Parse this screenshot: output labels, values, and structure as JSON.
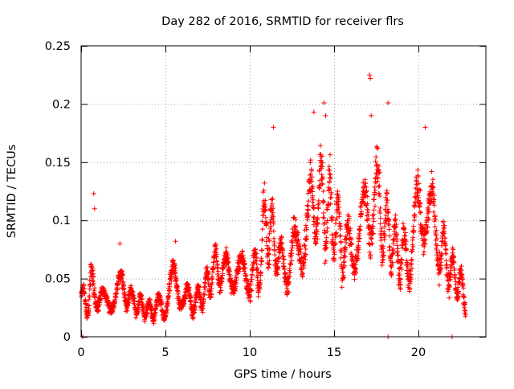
{
  "chart_data": {
    "type": "scatter",
    "title": "Day 282 of 2016, SRMTID for receiver flrs",
    "xlabel": "GPS time / hours",
    "ylabel": "SRMTID / TECUs",
    "xlim": [
      0,
      24
    ],
    "ylim": [
      0,
      0.25
    ],
    "xticks": [
      0,
      5,
      10,
      15,
      20
    ],
    "xtick_labels": [
      "0",
      "5",
      "10",
      "15",
      "20"
    ],
    "yticks": [
      0,
      0.05,
      0.1,
      0.15,
      0.2,
      0.25
    ],
    "ytick_labels": [
      "0",
      "0.05",
      "0.1",
      "0.15",
      "0.2",
      "0.25"
    ],
    "grid": true,
    "marker": "+",
    "marker_color": "#ff0000",
    "grid_color": "#a0a0a0",
    "axis_color": "#000000",
    "sampling": {
      "t_start": 0,
      "t_end": 22.8,
      "points_per_hour": 110
    },
    "series": [
      {
        "name": "SRMTID",
        "envelope": {
          "x": [
            0.0,
            0.3,
            0.6,
            1.0,
            1.5,
            2.0,
            2.5,
            3.0,
            3.5,
            4.0,
            4.5,
            5.0,
            5.5,
            6.0,
            6.5,
            7.0,
            7.5,
            8.0,
            8.5,
            9.0,
            9.5,
            10.0,
            10.5,
            11.0,
            11.5,
            12.0,
            12.5,
            13.0,
            13.5,
            14.0,
            14.5,
            15.0,
            15.5,
            16.0,
            16.5,
            17.0,
            17.5,
            18.0,
            18.5,
            19.0,
            19.5,
            20.0,
            20.5,
            21.0,
            21.5,
            22.0,
            22.5,
            22.8
          ],
          "y": [
            0.035,
            0.03,
            0.04,
            0.035,
            0.03,
            0.035,
            0.045,
            0.03,
            0.028,
            0.022,
            0.025,
            0.028,
            0.05,
            0.035,
            0.03,
            0.032,
            0.045,
            0.062,
            0.055,
            0.055,
            0.055,
            0.05,
            0.058,
            0.1,
            0.08,
            0.06,
            0.065,
            0.085,
            0.1,
            0.12,
            0.11,
            0.1,
            0.08,
            0.075,
            0.085,
            0.11,
            0.12,
            0.095,
            0.08,
            0.07,
            0.065,
            0.11,
            0.115,
            0.09,
            0.07,
            0.055,
            0.045,
            0.03
          ],
          "spread": [
            0.01,
            0.02,
            0.025,
            0.015,
            0.012,
            0.015,
            0.02,
            0.012,
            0.012,
            0.01,
            0.012,
            0.015,
            0.02,
            0.015,
            0.015,
            0.015,
            0.02,
            0.02,
            0.02,
            0.02,
            0.02,
            0.02,
            0.03,
            0.045,
            0.035,
            0.02,
            0.03,
            0.04,
            0.045,
            0.05,
            0.05,
            0.045,
            0.035,
            0.03,
            0.03,
            0.045,
            0.05,
            0.04,
            0.03,
            0.03,
            0.03,
            0.045,
            0.045,
            0.035,
            0.03,
            0.025,
            0.02,
            0.012
          ]
        },
        "notable_points": [
          {
            "x": 0.75,
            "y": 0.123
          },
          {
            "x": 0.8,
            "y": 0.11
          },
          {
            "x": 2.3,
            "y": 0.08
          },
          {
            "x": 5.6,
            "y": 0.082
          },
          {
            "x": 11.4,
            "y": 0.18
          },
          {
            "x": 13.8,
            "y": 0.193
          },
          {
            "x": 14.4,
            "y": 0.201
          },
          {
            "x": 14.5,
            "y": 0.19
          },
          {
            "x": 17.1,
            "y": 0.225
          },
          {
            "x": 17.15,
            "y": 0.222
          },
          {
            "x": 17.2,
            "y": 0.19
          },
          {
            "x": 18.2,
            "y": 0.201
          },
          {
            "x": 20.4,
            "y": 0.18
          },
          {
            "x": 0.1,
            "y": 0.0
          },
          {
            "x": 18.2,
            "y": 0.0
          },
          {
            "x": 22.0,
            "y": 0.0
          }
        ]
      }
    ]
  }
}
